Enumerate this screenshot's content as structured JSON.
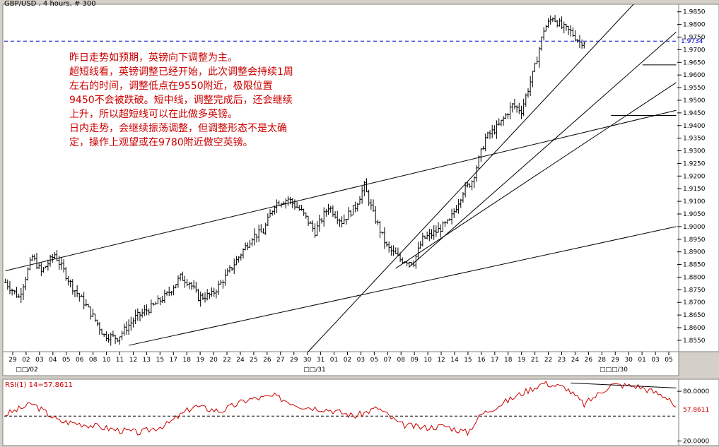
{
  "header": {
    "title": "GBP/USD , 4 hours, # 300"
  },
  "commentary": [
    "昨日走势如预期，英镑向下调整为主。",
    "超短线看，英镑调整已经开始，此次调整会持续1周左右的时间，调整低点在9550附近，极限位置9450不会被跌破。短中线，调整完成后，还会继续上升，所以超短线可以在此做多英镑。",
    "日内走势，会继续振荡调整，但调整形态不是太确定，操作上观望或在9780附近做空英镑。"
  ],
  "chart_data": [
    {
      "type": "ohlc",
      "title": "GBP/USD , 4 hours, # 300",
      "current_price": 1.9734,
      "current_price_label": "1.9734",
      "ylim": [
        1.8505,
        1.988
      ],
      "y_ticks": [
        "1.9850",
        "1.9800",
        "1.9750",
        "1.9700",
        "1.9650",
        "1.9600",
        "1.9550",
        "1.9500",
        "1.9450",
        "1.9400",
        "1.9350",
        "1.9300",
        "1.9250",
        "1.9200",
        "1.9150",
        "1.9100",
        "1.9050",
        "1.9000",
        "1.8950",
        "1.8900",
        "1.8850",
        "1.8800",
        "1.8750",
        "1.8700",
        "1.8650",
        "1.8600",
        "1.8550"
      ],
      "x_ticks": [
        "29",
        "02",
        "03",
        "04",
        "05",
        "06",
        "08",
        "10",
        "11",
        "12",
        "13",
        "15",
        "17",
        "18",
        "19",
        "20",
        "22",
        "24",
        "25",
        "26",
        "27",
        "29",
        "30",
        "31",
        "01",
        "02",
        "03",
        "05",
        "07",
        "08",
        "09",
        "10",
        "12",
        "14",
        "15",
        "16",
        "17",
        "18",
        "19",
        "21",
        "22",
        "23",
        "24",
        "26",
        "28",
        "29",
        "30",
        "01",
        "03",
        "05"
      ],
      "month_labels": [
        "□□/02",
        "□□/31",
        "□□□/30"
      ],
      "close_path": [
        [
          0,
          1.878
        ],
        [
          6,
          1.872
        ],
        [
          12,
          1.888
        ],
        [
          16,
          1.882
        ],
        [
          22,
          1.889
        ],
        [
          30,
          1.876
        ],
        [
          35,
          1.87
        ],
        [
          40,
          1.863
        ],
        [
          44,
          1.857
        ],
        [
          50,
          1.856
        ],
        [
          58,
          1.864
        ],
        [
          65,
          1.868
        ],
        [
          72,
          1.873
        ],
        [
          78,
          1.88
        ],
        [
          82,
          1.878
        ],
        [
          86,
          1.872
        ],
        [
          92,
          1.873
        ],
        [
          98,
          1.88
        ],
        [
          104,
          1.888
        ],
        [
          110,
          1.896
        ],
        [
          115,
          1.898
        ],
        [
          120,
          1.909
        ],
        [
          126,
          1.911
        ],
        [
          132,
          1.906
        ],
        [
          138,
          1.898
        ],
        [
          144,
          1.908
        ],
        [
          150,
          1.902
        ],
        [
          156,
          1.908
        ],
        [
          160,
          1.916
        ],
        [
          164,
          1.905
        ],
        [
          170,
          1.892
        ],
        [
          176,
          1.887
        ],
        [
          182,
          1.886
        ],
        [
          186,
          1.895
        ],
        [
          192,
          1.898
        ],
        [
          198,
          1.902
        ],
        [
          204,
          1.914
        ],
        [
          208,
          1.918
        ],
        [
          214,
          1.935
        ],
        [
          220,
          1.94
        ],
        [
          226,
          1.948
        ],
        [
          230,
          1.946
        ],
        [
          236,
          1.963
        ],
        [
          240,
          1.978
        ],
        [
          244,
          1.983
        ],
        [
          248,
          1.979
        ],
        [
          252,
          1.977
        ],
        [
          256,
          1.973
        ],
        [
          258,
          1.9734
        ]
      ],
      "trendlines": [
        {
          "from": [
            0,
            1.8825
          ],
          "to": [
            299,
            1.946
          ]
        },
        {
          "from": [
            55,
            1.853
          ],
          "to": [
            299,
            1.9
          ]
        },
        {
          "from": [
            135,
            1.8505
          ],
          "to": [
            280,
            1.988
          ]
        },
        {
          "from": [
            174,
            1.8835
          ],
          "to": [
            299,
            1.957
          ]
        },
        {
          "from": [
            180,
            1.884
          ],
          "to": [
            299,
            1.977
          ]
        },
        {
          "from": [
            284,
            1.964
          ],
          "to": [
            299,
            1.964
          ]
        },
        {
          "from": [
            270,
            1.944
          ],
          "to": [
            299,
            1.944
          ]
        }
      ]
    },
    {
      "type": "line",
      "title": "RSI(1) 14=57.8611",
      "current_value": 57.8611,
      "current_value_label": "57.8611",
      "ylim": [
        17,
        92
      ],
      "y_ticks": [
        "80.0000",
        "20.0000"
      ],
      "reference_line": 50,
      "path": [
        [
          0,
          52
        ],
        [
          12,
          65
        ],
        [
          24,
          44
        ],
        [
          36,
          40
        ],
        [
          48,
          34
        ],
        [
          60,
          30
        ],
        [
          72,
          40
        ],
        [
          84,
          62
        ],
        [
          96,
          56
        ],
        [
          108,
          70
        ],
        [
          120,
          74
        ],
        [
          132,
          62
        ],
        [
          144,
          58
        ],
        [
          156,
          50
        ],
        [
          166,
          60
        ],
        [
          176,
          40
        ],
        [
          186,
          36
        ],
        [
          196,
          38
        ],
        [
          206,
          30
        ],
        [
          212,
          52
        ],
        [
          222,
          66
        ],
        [
          232,
          80
        ],
        [
          240,
          90
        ],
        [
          250,
          84
        ],
        [
          258,
          64
        ],
        [
          270,
          88
        ],
        [
          282,
          86
        ],
        [
          296,
          72
        ],
        [
          299,
          58
        ]
      ],
      "trendline": {
        "from": [
          252,
          90
        ],
        "to": [
          299,
          84
        ]
      }
    }
  ]
}
